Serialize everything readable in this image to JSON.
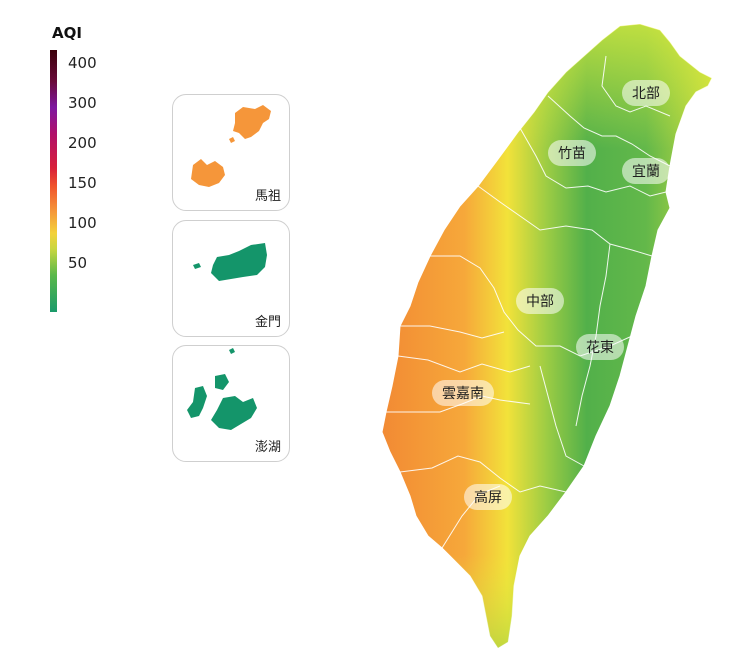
{
  "legend": {
    "title": "AQI",
    "ticks": [
      "400",
      "300",
      "200",
      "150",
      "100",
      "50"
    ]
  },
  "insets": [
    {
      "label": "馬祖"
    },
    {
      "label": "金門"
    },
    {
      "label": "澎湖"
    }
  ],
  "regions": [
    {
      "label": "北部"
    },
    {
      "label": "竹苗"
    },
    {
      "label": "宜蘭"
    },
    {
      "label": "中部"
    },
    {
      "label": "花東"
    },
    {
      "label": "雲嘉南"
    },
    {
      "label": "高屏"
    }
  ],
  "colors": {
    "good": "#1a9a6a",
    "moderate": "#f3d23a",
    "unhealthy_sensitive": "#f59a3a",
    "unhealthy": "#d8203a",
    "very_unhealthy": "#7e18a0",
    "hazardous": "#3a000a"
  }
}
